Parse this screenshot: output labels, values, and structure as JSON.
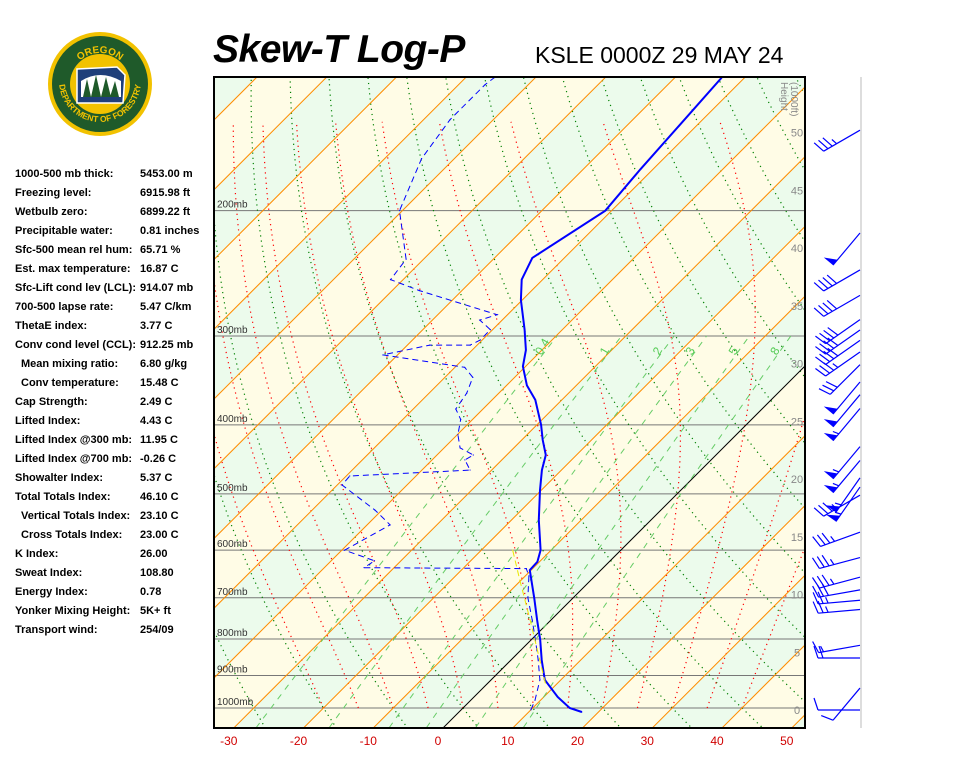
{
  "header": {
    "title": "Skew-T Log-P",
    "subtitle": "KSLE 0000Z 29 MAY 24"
  },
  "logo": {
    "top_text": "OREGON",
    "ring_text": "DEPARTMENT OF FORESTRY"
  },
  "stats": [
    {
      "label": "1000-500 mb thick:",
      "value": "5453.00 m"
    },
    {
      "label": "Freezing level:",
      "value": "6915.98 ft"
    },
    {
      "label": "Wetbulb zero:",
      "value": "6899.22 ft"
    },
    {
      "label": "Precipitable water:",
      "value": "0.81 inches"
    },
    {
      "label": "Sfc-500 mean rel hum:",
      "value": "65.71 %"
    },
    {
      "label": "Est. max temperature:",
      "value": "16.87 C"
    },
    {
      "label": "Sfc-Lift cond lev (LCL):",
      "value": "914.07 mb"
    },
    {
      "label": "700-500 lapse rate:",
      "value": "5.47 C/km"
    },
    {
      "label": "ThetaE index:",
      "value": "3.77 C"
    },
    {
      "label": "Conv cond level (CCL):",
      "value": "912.25 mb"
    },
    {
      "label": "Mean mixing ratio:",
      "value": "6.80 g/kg",
      "indent": true
    },
    {
      "label": "Conv temperature:",
      "value": "15.48 C",
      "indent": true
    },
    {
      "label": "Cap Strength:",
      "value": "2.49 C"
    },
    {
      "label": "Lifted Index:",
      "value": "4.43 C"
    },
    {
      "label": "Lifted Index @300 mb:",
      "value": "11.95 C"
    },
    {
      "label": "Lifted Index @700 mb:",
      "value": "-0.26 C"
    },
    {
      "label": "Showalter Index:",
      "value": "5.37 C"
    },
    {
      "label": "Total Totals Index:",
      "value": "46.10 C"
    },
    {
      "label": "Vertical Totals Index:",
      "value": "23.10 C",
      "indent": true
    },
    {
      "label": "Cross Totals Index:",
      "value": "23.00 C",
      "indent": true
    },
    {
      "label": "K Index:",
      "value": "26.00"
    },
    {
      "label": "Sweat Index:",
      "value": "108.80"
    },
    {
      "label": "Energy Index:",
      "value": "0.78"
    },
    {
      "label": "Yonker Mixing Height:",
      "value": "5K+ ft"
    },
    {
      "label": "Transport wind:",
      "value": "254/09"
    }
  ],
  "chart_data": {
    "type": "line",
    "subtype": "skew-t log-p",
    "xlabel": "",
    "x_ticks": [
      "-30",
      "-20",
      "-10",
      "0",
      "10",
      "20",
      "30",
      "40",
      "50"
    ],
    "x_tick_values": [
      -30,
      -20,
      -10,
      0,
      10,
      20,
      30,
      40,
      50
    ],
    "pressure_levels": [
      {
        "p": 1000,
        "label": "1000mb"
      },
      {
        "p": 900,
        "label": "900mb"
      },
      {
        "p": 800,
        "label": "800mb"
      },
      {
        "p": 700,
        "label": "700mb"
      },
      {
        "p": 600,
        "label": "600mb"
      },
      {
        "p": 500,
        "label": "500mb"
      },
      {
        "p": 400,
        "label": "400mb"
      },
      {
        "p": 300,
        "label": "300mb"
      },
      {
        "p": 200,
        "label": "200mb"
      }
    ],
    "pressure_range_mb": [
      1067,
      130
    ],
    "height_axis": {
      "title": "Height",
      "units": "(1000ft)",
      "ticks": [
        "0",
        "5",
        "10",
        "15",
        "20",
        "25",
        "30",
        "35",
        "40",
        "45",
        "50"
      ],
      "tick_values": [
        0,
        5,
        10,
        15,
        20,
        25,
        30,
        35,
        40,
        45,
        50
      ]
    },
    "mixing_ratio_labels": [
      "0.4",
      "1",
      "2",
      "3",
      "5",
      "8"
    ],
    "mixing_ratio_values": [
      0.4,
      1,
      2,
      3,
      5,
      8
    ],
    "colors": {
      "temperature": "#0000ff",
      "dewpoint": "#0000ff",
      "parcel": "#e8e800",
      "isotherm": "#ff8c00",
      "zero_isotherm": "#000000",
      "dry_adiabat": "#008000",
      "moist_adiabat": "#ff0000",
      "mixing_ratio": "#66cc66",
      "band_a": "#fffce6",
      "band_b": "#ecfbec",
      "x_tick": "#d00000",
      "wind": "#0000ff"
    },
    "series": [
      {
        "id": "temperature",
        "style": "solid",
        "points": [
          {
            "p": 1013,
            "t": 17.6
          },
          {
            "p": 1000,
            "t": 15.3
          },
          {
            "p": 965,
            "t": 12.0
          },
          {
            "p": 913,
            "t": 7.7
          },
          {
            "p": 856,
            "t": 4.4
          },
          {
            "p": 802,
            "t": 1.3
          },
          {
            "p": 752,
            "t": -2.0
          },
          {
            "p": 700,
            "t": -5.6
          },
          {
            "p": 640,
            "t": -10.2
          },
          {
            "p": 623,
            "t": -10.3
          },
          {
            "p": 600,
            "t": -11.5
          },
          {
            "p": 544,
            "t": -16.1
          },
          {
            "p": 494,
            "t": -20.2
          },
          {
            "p": 463,
            "t": -22.8
          },
          {
            "p": 441,
            "t": -24.4
          },
          {
            "p": 420,
            "t": -27.0
          },
          {
            "p": 400,
            "t": -29.4
          },
          {
            "p": 369,
            "t": -33.8
          },
          {
            "p": 352,
            "t": -37.1
          },
          {
            "p": 331,
            "t": -40.4
          },
          {
            "p": 314,
            "t": -42.3
          },
          {
            "p": 294,
            "t": -45.4
          },
          {
            "p": 267,
            "t": -50.2
          },
          {
            "p": 250,
            "t": -53.0
          },
          {
            "p": 233,
            "t": -54.6
          },
          {
            "p": 200,
            "t": -50.9
          },
          {
            "p": 175,
            "t": -51.8
          },
          {
            "p": 152,
            "t": -52.5
          },
          {
            "p": 130,
            "t": -53.3
          }
        ]
      },
      {
        "id": "dewpoint",
        "style": "dashed",
        "points": [
          {
            "p": 1006,
            "t": 10.0
          },
          {
            "p": 975,
            "t": 9.2
          },
          {
            "p": 913,
            "t": 7.0
          },
          {
            "p": 856,
            "t": 3.9
          },
          {
            "p": 802,
            "t": 0.6
          },
          {
            "p": 752,
            "t": -2.7
          },
          {
            "p": 700,
            "t": -6.5
          },
          {
            "p": 652,
            "t": -9.5
          },
          {
            "p": 637,
            "t": -10.9
          },
          {
            "p": 635,
            "t": -34.3
          },
          {
            "p": 621,
            "t": -33.8
          },
          {
            "p": 600,
            "t": -39.6
          },
          {
            "p": 553,
            "t": -36.7
          },
          {
            "p": 527,
            "t": -41.0
          },
          {
            "p": 486,
            "t": -49.3
          },
          {
            "p": 472,
            "t": -49.5
          },
          {
            "p": 463,
            "t": -33.1
          },
          {
            "p": 448,
            "t": -35.3
          },
          {
            "p": 441,
            "t": -34.8
          },
          {
            "p": 431,
            "t": -37.7
          },
          {
            "p": 413,
            "t": -39.9
          },
          {
            "p": 393,
            "t": -41.7
          },
          {
            "p": 380,
            "t": -43.9
          },
          {
            "p": 361,
            "t": -44.6
          },
          {
            "p": 343,
            "t": -46.0
          },
          {
            "p": 332,
            "t": -48.6
          },
          {
            "p": 319,
            "t": -62.1
          },
          {
            "p": 309,
            "t": -56.8
          },
          {
            "p": 309,
            "t": -51.0
          },
          {
            "p": 304,
            "t": -50.3
          },
          {
            "p": 294,
            "t": -50.3
          },
          {
            "p": 285,
            "t": -53.2
          },
          {
            "p": 280,
            "t": -51.5
          },
          {
            "p": 259,
            "t": -66.1
          },
          {
            "p": 250,
            "t": -71.8
          },
          {
            "p": 234,
            "t": -72.5
          },
          {
            "p": 200,
            "t": -80.4
          },
          {
            "p": 169,
            "t": -84.7
          },
          {
            "p": 149,
            "t": -86.2
          },
          {
            "p": 133,
            "t": -86.2
          },
          {
            "p": 130,
            "t": -85.9
          }
        ]
      },
      {
        "id": "parcel",
        "style": "dashed",
        "points": [
          {
            "p": 922,
            "t": 8.2
          },
          {
            "p": 752,
            "t": -3.0
          },
          {
            "p": 661,
            "t": -10.2
          },
          {
            "p": 600,
            "t": -15.5
          }
        ]
      }
    ],
    "winds": [
      {
        "h_kft": 50.2,
        "dir": 240,
        "kt": 35
      },
      {
        "h_kft": 41.3,
        "dir": 220,
        "kt": 50
      },
      {
        "h_kft": 38.1,
        "dir": 240,
        "kt": 40
      },
      {
        "h_kft": 35.9,
        "dir": 240,
        "kt": 40
      },
      {
        "h_kft": 33.8,
        "dir": 235,
        "kt": 40
      },
      {
        "h_kft": 32.9,
        "dir": 235,
        "kt": 40
      },
      {
        "h_kft": 32.0,
        "dir": 235,
        "kt": 40
      },
      {
        "h_kft": 31.0,
        "dir": 235,
        "kt": 35
      },
      {
        "h_kft": 29.9,
        "dir": 225,
        "kt": 30
      },
      {
        "h_kft": 28.4,
        "dir": 220,
        "kt": 50
      },
      {
        "h_kft": 27.3,
        "dir": 220,
        "kt": 50
      },
      {
        "h_kft": 26.1,
        "dir": 220,
        "kt": 55
      },
      {
        "h_kft": 22.8,
        "dir": 220,
        "kt": 55
      },
      {
        "h_kft": 21.6,
        "dir": 220,
        "kt": 55
      },
      {
        "h_kft": 20.1,
        "dir": 215,
        "kt": 55
      },
      {
        "h_kft": 19.3,
        "dir": 215,
        "kt": 55
      },
      {
        "h_kft": 18.6,
        "dir": 240,
        "kt": 35
      },
      {
        "h_kft": 15.4,
        "dir": 250,
        "kt": 35
      },
      {
        "h_kft": 13.2,
        "dir": 255,
        "kt": 35
      },
      {
        "h_kft": 11.5,
        "dir": 255,
        "kt": 35
      },
      {
        "h_kft": 10.4,
        "dir": 260,
        "kt": 30
      },
      {
        "h_kft": 9.5,
        "dir": 265,
        "kt": 25
      },
      {
        "h_kft": 8.7,
        "dir": 265,
        "kt": 25
      },
      {
        "h_kft": 5.6,
        "dir": 260,
        "kt": 15
      },
      {
        "h_kft": 4.5,
        "dir": 270,
        "kt": 20
      },
      {
        "h_kft": 1.9,
        "dir": 220,
        "kt": 10
      },
      {
        "h_kft": 0.0,
        "dir": 270,
        "kt": 10
      }
    ]
  }
}
